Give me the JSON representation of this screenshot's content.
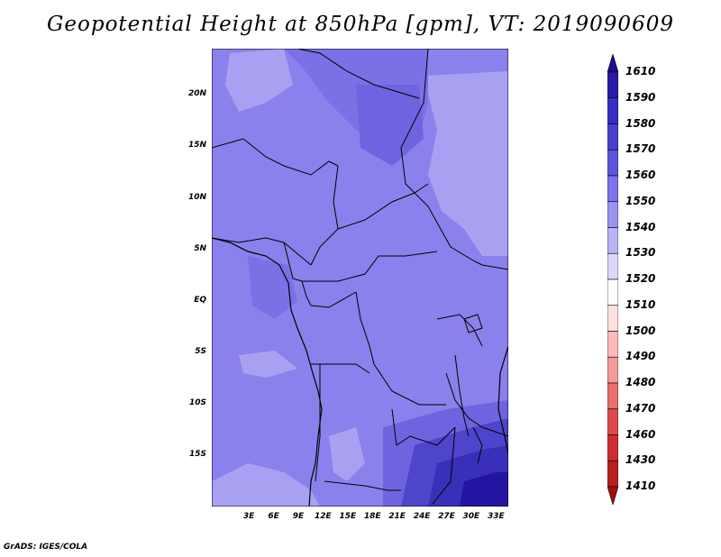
{
  "title": "Geopotential Height at 850hPa [gpm], VT: 2019090609",
  "footer": "GrADS: IGES/COLA",
  "map": {
    "lon_range": [
      -1.5,
      34.5
    ],
    "lat_range": [
      -20,
      24.5
    ],
    "x_ticks": [
      "3E",
      "6E",
      "9E",
      "12E",
      "15E",
      "18E",
      "21E",
      "24E",
      "27E",
      "30E",
      "33E"
    ],
    "x_tick_values": [
      3,
      6,
      9,
      12,
      15,
      18,
      21,
      24,
      27,
      30,
      33
    ],
    "y_ticks": [
      "20N",
      "15N",
      "10N",
      "5N",
      "EQ",
      "5S",
      "10S",
      "15S"
    ],
    "y_tick_values": [
      20,
      15,
      10,
      5,
      0,
      -5,
      -10,
      -15
    ],
    "dominant_level": 1550,
    "higher_region": "southeast (Mozambique/Zimbabwe area) up to 1590",
    "lower_regions": "northeast Sudan/Ethiopia ~1540"
  },
  "colorbar": {
    "levels": [
      "1610",
      "1590",
      "1580",
      "1570",
      "1560",
      "1550",
      "1540",
      "1530",
      "1520",
      "1510",
      "1500",
      "1490",
      "1480",
      "1470",
      "1460",
      "1430",
      "1410"
    ],
    "colors": [
      "#1e0a8c",
      "#2a1aa8",
      "#3a2ec0",
      "#4a40d0",
      "#5a55dc",
      "#7c74e8",
      "#9b93f0",
      "#bab4f6",
      "#dcd8fc",
      "#ffffff",
      "#fde0e0",
      "#fbbaba",
      "#f49a9a",
      "#e87070",
      "#dc4a4a",
      "#cc2e2e",
      "#b81e1e",
      "#9c1010"
    ]
  },
  "colors": {
    "level_1550": "#8a81ec",
    "level_1560": "#6e64e0",
    "level_1540": "#a8a1f2",
    "level_1570": "#4f44cc",
    "level_1580": "#3a2fb8",
    "level_1590": "#2415a0",
    "border": "#000000"
  }
}
